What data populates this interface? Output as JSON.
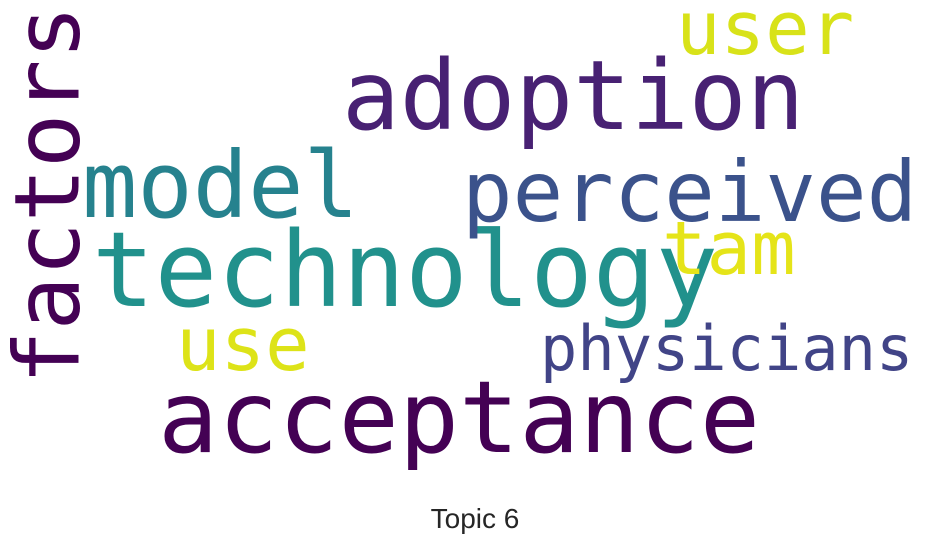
{
  "chart_data": {
    "type": "wordcloud",
    "title": "Topic 6",
    "colormap": "viridis",
    "words": [
      {
        "text": "technology",
        "weight": 1.0,
        "color": "#21918c"
      },
      {
        "text": "acceptance",
        "weight": 0.96,
        "color": "#440154"
      },
      {
        "text": "adoption",
        "weight": 0.92,
        "color": "#482173"
      },
      {
        "text": "model",
        "weight": 0.88,
        "color": "#26828e"
      },
      {
        "text": "factors",
        "weight": 0.85,
        "color": "#440154"
      },
      {
        "text": "perceived",
        "weight": 0.8,
        "color": "#3b528b"
      },
      {
        "text": "use",
        "weight": 0.72,
        "color": "#dde318"
      },
      {
        "text": "user",
        "weight": 0.7,
        "color": "#d8e219"
      },
      {
        "text": "tam",
        "weight": 0.7,
        "color": "#e5e419"
      },
      {
        "text": "physicians",
        "weight": 0.58,
        "color": "#414487"
      }
    ]
  }
}
